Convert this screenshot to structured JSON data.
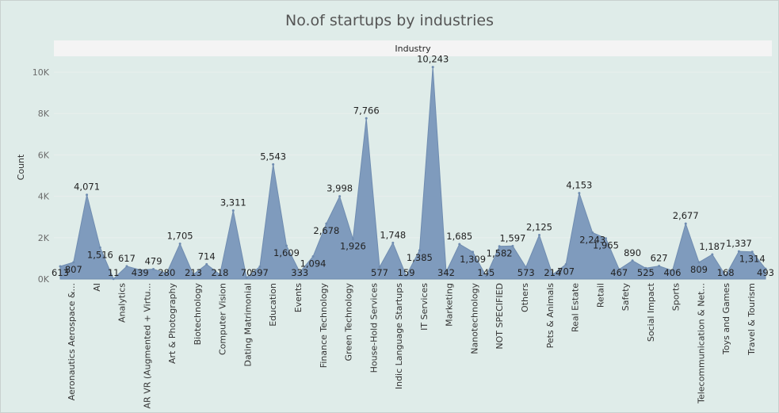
{
  "chart_data": {
    "type": "area",
    "title": "No.of startups by industries",
    "header": "Industry",
    "xlabel": "",
    "ylabel": "Count",
    "ylim": [
      0,
      11000
    ],
    "yticks": [
      0,
      2000,
      4000,
      6000,
      8000,
      10000
    ],
    "ytick_labels": [
      "0K",
      "2K",
      "4K",
      "6K",
      "8K",
      "10K"
    ],
    "color": "#7f9bbd",
    "grid": true,
    "x_tick_labels": [
      "Aeronautics Aerospace &...",
      "AI",
      "Analytics",
      "AR VR (Augmented + Virtu...",
      "Art & Photography",
      "Biotechnology",
      "Computer Vision",
      "Dating Matrimonial",
      "Education",
      "Events",
      "Finance Technology",
      "Green Technology",
      "House-Hold Services",
      "Indic Language Startups",
      "IT Services",
      "Marketing",
      "Nanotechnology",
      "NOT SPECIFIED",
      "Others",
      "Pets & Animals",
      "Real Estate",
      "Retail",
      "Safety",
      "Social Impact",
      "Sports",
      "Telecommunication & Net...",
      "Toys and Games",
      "Travel & Tourism"
    ],
    "values": [
      613,
      807,
      4071,
      1516,
      11,
      617,
      439,
      479,
      280,
      1705,
      213,
      714,
      218,
      3311,
      70,
      597,
      5543,
      1609,
      333,
      1094,
      2678,
      3998,
      1926,
      7766,
      577,
      1748,
      159,
      1385,
      10243,
      342,
      1685,
      1309,
      145,
      1582,
      1597,
      573,
      2125,
      214,
      707,
      4153,
      2243,
      1965,
      467,
      890,
      525,
      627,
      406,
      2677,
      809,
      1187,
      168,
      1337,
      1314,
      493
    ],
    "data_labels": [
      "613",
      "807",
      "4,071",
      "1,516",
      "11",
      "617",
      "439",
      "479",
      "280",
      "1,705",
      "213",
      "714",
      "218",
      "3,311",
      "70",
      "597",
      "5,543",
      "1,609",
      "333",
      "1,094",
      "2,678",
      "3,998",
      "1,926",
      "7,766",
      "577",
      "1,748",
      "159",
      "1,385",
      "10,243",
      "342",
      "1,685",
      "1,309",
      "145",
      "1,582",
      "1,597",
      "573",
      "2,125",
      "214",
      "707",
      "4,153",
      "2,243",
      "1,965",
      "467",
      "890",
      "525",
      "627",
      "406",
      "2,677",
      "809",
      "1,187",
      "168",
      "1,337",
      "1,314",
      "493"
    ]
  }
}
